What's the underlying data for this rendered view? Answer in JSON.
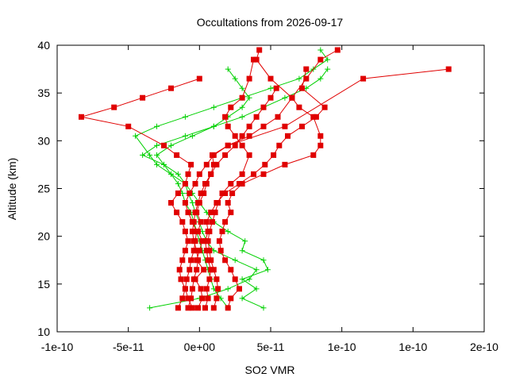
{
  "chart_data": {
    "type": "scatter",
    "title": "Occultations from 2026-09-17",
    "xlabel": "SO2 VMR",
    "ylabel": "Altitude (km)",
    "xlim": [
      -1e-10,
      2e-10
    ],
    "ylim": [
      10,
      40
    ],
    "x_ticks": [
      "-1e-10",
      "-5e-11",
      "0e+00",
      "5e-11",
      "1e-10",
      "1e-10",
      "2e-10"
    ],
    "x_tick_values": [
      -1e-10,
      -5e-11,
      0,
      5e-11,
      1e-10,
      1.5e-10,
      2e-10
    ],
    "y_ticks": [
      "10",
      "15",
      "20",
      "25",
      "30",
      "35",
      "40"
    ],
    "y_tick_values": [
      10,
      15,
      20,
      25,
      30,
      35,
      40
    ],
    "grid": false,
    "legend": "none",
    "colors": {
      "red": "#e00000",
      "green": "#00d000"
    },
    "series": [
      {
        "color": "red",
        "marker": "square",
        "x": [
          -1e-12,
          2e-12,
          1e-12,
          -3e-12,
          3e-12,
          -2e-12,
          0,
          2e-12,
          -1e-12,
          1e-12,
          -2e-12,
          0,
          3e-12,
          5e-12,
          8e-12,
          1e-11,
          9e-12,
          2e-11,
          6e-11,
          1.15e-10,
          1.75e-10
        ],
        "y": [
          12.5,
          13.5,
          14.5,
          15.5,
          16.5,
          17.5,
          18.5,
          19.5,
          20.5,
          21.5,
          22.5,
          23.5,
          24.5,
          25.5,
          26.5,
          27.5,
          28.5,
          29.5,
          31.5,
          36.5,
          37.5
        ]
      },
      {
        "color": "red",
        "marker": "square",
        "x": [
          -1.5e-11,
          -1.2e-11,
          -1e-11,
          -1.3e-11,
          -1.4e-11,
          -1.2e-11,
          -1e-11,
          -8e-12,
          -1e-11,
          -1.2e-11,
          -1.6e-11,
          -2e-11,
          -1.5e-11,
          -1e-11,
          -8e-12,
          -6e-12,
          -1.6e-11,
          -2.5e-11,
          -5e-11,
          -8.3e-11,
          -6e-11,
          -4e-11,
          -2e-11,
          0
        ],
        "y": [
          12.5,
          13.5,
          14.5,
          15.5,
          16.5,
          17.5,
          18.5,
          19.5,
          20.5,
          21.5,
          22.5,
          23.5,
          24.5,
          25.5,
          26.5,
          27.5,
          28.5,
          29.5,
          31.5,
          32.5,
          33.5,
          34.5,
          35.5,
          36.5
        ]
      },
      {
        "color": "red",
        "marker": "square",
        "x": [
          2e-11,
          2.2e-11,
          2.8e-11,
          2.5e-11,
          2.2e-11,
          1.8e-11,
          1.5e-11,
          1.4e-11,
          1.6e-11,
          1.8e-11,
          2.2e-11,
          2e-11,
          2.3e-11,
          3e-11,
          4.5e-11,
          6e-11,
          8e-11,
          8.5e-11,
          8.5e-11,
          8e-11,
          7e-11,
          6.5e-11,
          5e-11,
          4e-11,
          4.2e-11
        ],
        "y": [
          12.5,
          13.5,
          14.5,
          15.5,
          16.5,
          17.5,
          18.5,
          19.5,
          20.5,
          21.5,
          22.5,
          23.5,
          24.5,
          25.5,
          26.5,
          27.5,
          28.5,
          29.5,
          30.5,
          32.5,
          33.5,
          34.5,
          36.5,
          38.5,
          39.5
        ]
      },
      {
        "color": "red",
        "marker": "square",
        "x": [
          -5e-12,
          -8e-12,
          -1e-11,
          -9e-12,
          -7e-12,
          -6e-12,
          -4e-12,
          -3e-12,
          -2e-12,
          -5e-12,
          -8e-12,
          -1e-11,
          -7e-12,
          -3e-12,
          0,
          5e-12,
          1e-11,
          2e-11,
          3.5e-11,
          4.5e-11,
          5.5e-11,
          6.5e-11,
          7.5e-11,
          8.5e-11,
          9.7e-11
        ],
        "y": [
          12.5,
          13.5,
          14.5,
          15.5,
          16.5,
          17.5,
          18.5,
          19.5,
          20.5,
          21.5,
          22.5,
          23.5,
          24.5,
          25.5,
          26.5,
          27.5,
          28.5,
          29.5,
          30.5,
          31.5,
          32.5,
          34.5,
          36.5,
          38.5,
          39.5
        ]
      },
      {
        "color": "red",
        "marker": "square",
        "x": [
          1e-11,
          1.2e-11,
          1.3e-11,
          1.2e-11,
          1e-11,
          8e-12,
          7e-12,
          6e-12,
          7e-12,
          9e-12,
          1.1e-11,
          1.3e-11,
          1.6e-11,
          2.2e-11,
          3e-11,
          3.5e-11,
          3e-11,
          2.5e-11,
          2e-11,
          1.8e-11,
          2.2e-11,
          3e-11,
          3.5e-11,
          3.8e-11
        ],
        "y": [
          12.5,
          13.5,
          14.5,
          15.5,
          16.5,
          17.5,
          18.5,
          19.5,
          20.5,
          21.5,
          22.5,
          23.5,
          24.5,
          25.5,
          26.5,
          28.5,
          29.5,
          30.5,
          31.5,
          32.5,
          33.5,
          34.5,
          36.5,
          38.5
        ]
      },
      {
        "color": "red",
        "marker": "square",
        "x": [
          4e-12,
          6e-12,
          5e-12,
          7e-12,
          8e-12,
          6e-12,
          5e-12,
          4e-12,
          6e-12,
          5e-12,
          8e-12,
          1.2e-11,
          1.8e-11,
          2.8e-11,
          3.8e-11,
          4.6e-11,
          5.2e-11,
          5.6e-11,
          6.2e-11,
          7.2e-11,
          8.2e-11,
          8.8e-11,
          7.2e-11,
          7.5e-11
        ],
        "y": [
          12.5,
          13.5,
          14.5,
          15.5,
          16.5,
          17.5,
          18.5,
          19.5,
          20.5,
          21.5,
          22.5,
          23.5,
          24.5,
          25.5,
          26.5,
          27.5,
          28.5,
          29.5,
          30.5,
          31.5,
          32.5,
          33.5,
          35.5,
          37.5
        ]
      },
      {
        "color": "red",
        "marker": "square",
        "x": [
          -8e-12,
          -6e-12,
          -5e-12,
          -4e-12,
          -2e-12,
          -1e-12,
          -2e-12,
          -4e-12,
          -5e-12,
          -4e-12,
          -3e-12,
          -1e-12,
          1e-12,
          4e-12,
          8e-12,
          1.2e-11,
          1.8e-11,
          2.5e-11,
          3e-11,
          3.5e-11,
          4e-11,
          4.5e-11,
          5e-11,
          5.4e-11
        ],
        "y": [
          12.5,
          13.5,
          14.5,
          15.5,
          16.5,
          17.5,
          18.5,
          19.5,
          20.5,
          21.5,
          22.5,
          23.5,
          24.5,
          25.5,
          26.5,
          27.5,
          28.5,
          29.5,
          30.5,
          31.5,
          32.5,
          33.5,
          34.5,
          35.5
        ]
      },
      {
        "color": "green",
        "marker": "plus",
        "x": [
          -3.5e-11,
          0,
          2e-11,
          3.5e-11,
          4e-11,
          2.5e-11,
          1e-11,
          5e-12,
          2e-12,
          0,
          -3e-12,
          -5e-12,
          -8e-12,
          -1e-11,
          -1.5e-11,
          -2.5e-11,
          -4e-11,
          -3e-11,
          -1e-11,
          1e-11,
          3e-11,
          4.5e-11,
          6e-11,
          7.5e-11,
          8.5e-11,
          9e-11
        ],
        "y": [
          12.5,
          13.5,
          14.5,
          15.5,
          16.5,
          17.5,
          18.5,
          19.5,
          20.5,
          21.5,
          22.5,
          23.5,
          24.5,
          25.5,
          26.5,
          27.5,
          28.5,
          29.5,
          30.5,
          31.5,
          32.5,
          33.5,
          34.5,
          35.5,
          36.5,
          37.5
        ]
      },
      {
        "color": "green",
        "marker": "plus",
        "x": [
          4.5e-11,
          3e-11,
          4e-11,
          3e-11,
          4.8e-11,
          4.5e-11,
          3e-11,
          3.2e-11,
          2e-11,
          1e-11,
          5e-12,
          0,
          -5e-12,
          -1e-11,
          -2e-11,
          -3e-11,
          -3.5e-11,
          -4.5e-11,
          -3e-11,
          -1e-11,
          1e-11,
          3e-11,
          5e-11,
          7e-11,
          8e-11,
          9e-11,
          8.5e-11
        ],
        "y": [
          12.5,
          13.5,
          14.5,
          15.5,
          16.5,
          17.5,
          18.5,
          19.5,
          20.5,
          21.5,
          22.5,
          23.5,
          24.5,
          25.5,
          26.5,
          27.5,
          28.5,
          30.5,
          31.5,
          32.5,
          33.5,
          34.5,
          35.5,
          36.5,
          37.5,
          38.5,
          39.5
        ]
      },
      {
        "color": "green",
        "marker": "plus",
        "x": [
          2e-11,
          1.5e-11,
          1e-11,
          8e-12,
          6e-12,
          4e-12,
          2e-12,
          0,
          -2e-12,
          -4e-12,
          -6e-12,
          -1e-11,
          -1.2e-11,
          -1.5e-11,
          -2e-11,
          -2.5e-11,
          -3e-11,
          -2e-11,
          -5e-12,
          1e-11,
          2e-11,
          3e-11,
          3.5e-11,
          3e-11,
          2.5e-11,
          2e-11
        ],
        "y": [
          12.5,
          13.5,
          14.5,
          15.5,
          16.5,
          17.5,
          18.5,
          19.5,
          20.5,
          21.5,
          22.5,
          23.5,
          24.5,
          25.5,
          26.5,
          27.5,
          28.5,
          29.5,
          30.5,
          31.5,
          32.5,
          33.5,
          34.5,
          35.5,
          36.5,
          37.5
        ]
      }
    ]
  }
}
